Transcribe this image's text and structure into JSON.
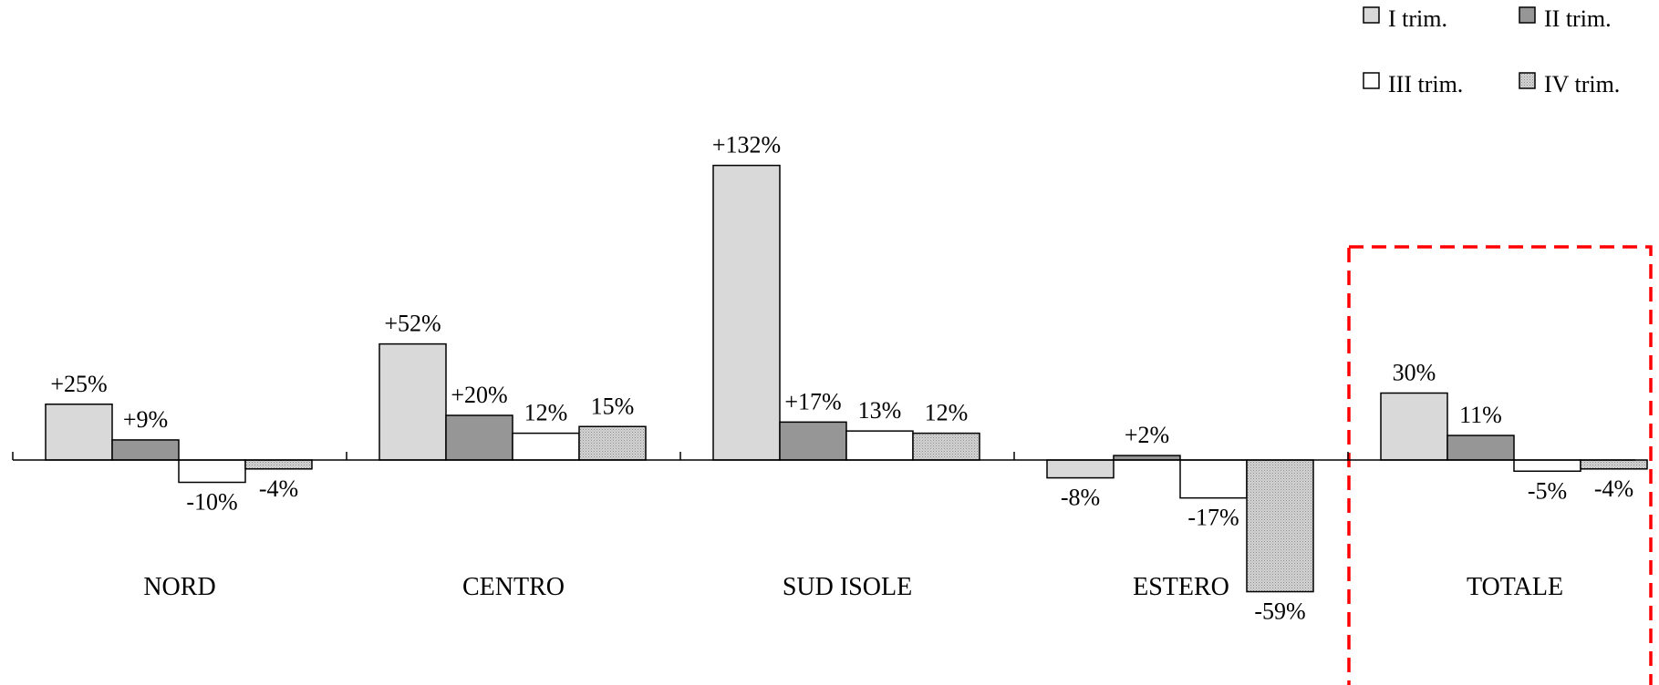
{
  "chart_data": {
    "type": "bar",
    "categories": [
      "NORD",
      "CENTRO",
      "SUD  ISOLE",
      "ESTERO",
      "TOTALE"
    ],
    "series": [
      {
        "name": "I trim.",
        "values": [
          25,
          52,
          132,
          -8,
          30
        ],
        "labels": [
          "+25%",
          "+52%",
          "+132%",
          "-8%",
          "30%"
        ],
        "color": "#d9d9d9"
      },
      {
        "name": "II trim.",
        "values": [
          9,
          20,
          17,
          2,
          11
        ],
        "labels": [
          "+9%",
          "+20%",
          "+17%",
          "+2%",
          "11%"
        ],
        "color": "#969696"
      },
      {
        "name": "III trim.",
        "values": [
          -10,
          12,
          13,
          -17,
          -5
        ],
        "labels": [
          "-10%",
          "12%",
          "13%",
          "-17%",
          "-5%"
        ],
        "color": "#ffffff"
      },
      {
        "name": "IV trim.",
        "values": [
          -4,
          15,
          12,
          -59,
          -4
        ],
        "labels": [
          "-4%",
          "15%",
          "12%",
          "-59%",
          "-4%"
        ],
        "color": "#c0c0c0",
        "pattern": "dotted"
      }
    ],
    "unit": "%",
    "grid": false,
    "legend_position": "top-right",
    "highlight": {
      "category": "TOTALE",
      "style": "dashed-box",
      "color": "#ff0000"
    }
  }
}
